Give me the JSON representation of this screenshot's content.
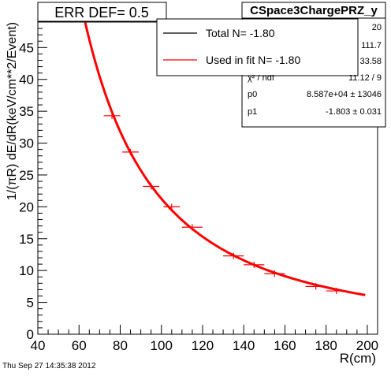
{
  "header": {
    "err_def": "ERR DEF= 0.5",
    "histogram_name": "CSpace3ChargePRZ_y"
  },
  "stats": {
    "rows": [
      {
        "label": "",
        "value": "20"
      },
      {
        "label": "",
        "value": "111.7"
      },
      {
        "label": "",
        "value": "33.58"
      },
      {
        "label": "χ² / ndf",
        "value": "11.12 / 9"
      },
      {
        "label": "p0",
        "value": "8.587e+04 ± 13046"
      },
      {
        "label": "p1",
        "value": "-1.803 ± 0.031"
      }
    ]
  },
  "legend": {
    "entries": [
      {
        "label": "Total N= -1.80",
        "color": "#000000"
      },
      {
        "label": "Used in fit N= -1.80",
        "color": "#ff0000"
      }
    ]
  },
  "footer": {
    "timestamp": "Thu Sep 27 14:35:38 2012"
  },
  "chart_data": {
    "type": "scatter",
    "xlabel": "R(cm)",
    "ylabel": "1/(πR) dE/dR(keV/cm**2/Event)",
    "xlim": [
      40,
      205
    ],
    "ylim": [
      0,
      49
    ],
    "xticks": [
      40,
      60,
      80,
      100,
      120,
      140,
      160,
      180,
      200
    ],
    "yticks": [
      0,
      5,
      10,
      15,
      20,
      25,
      30,
      35,
      40,
      45
    ],
    "fit": {
      "function": "p0*x^p1",
      "p0": 85870,
      "p1": -1.803,
      "x_range": [
        63,
        199
      ],
      "color": "#ff0000"
    },
    "points": [
      {
        "x": 76,
        "y": 34.3,
        "xerr": 4
      },
      {
        "x": 85,
        "y": 28.6,
        "xerr": 4
      },
      {
        "x": 95,
        "y": 23.2,
        "xerr": 4
      },
      {
        "x": 105,
        "y": 20.0,
        "xerr": 4
      },
      {
        "x": 115,
        "y": 16.8,
        "xerr": 5
      },
      {
        "x": 135,
        "y": 12.3,
        "xerr": 5
      },
      {
        "x": 145,
        "y": 10.9,
        "xerr": 5
      },
      {
        "x": 155,
        "y": 9.5,
        "xerr": 5
      },
      {
        "x": 175,
        "y": 7.5,
        "xerr": 5
      },
      {
        "x": 185,
        "y": 6.8,
        "xerr": 5
      }
    ]
  }
}
